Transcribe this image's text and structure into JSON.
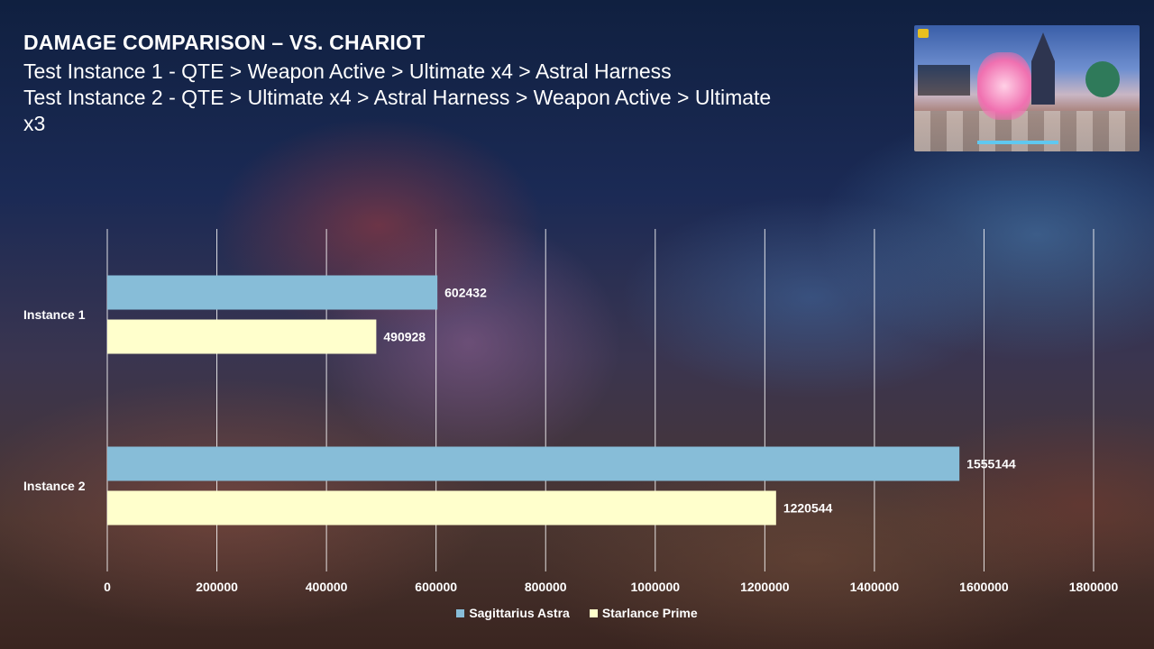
{
  "chart_data": {
    "type": "bar",
    "orientation": "horizontal",
    "title": "DAMAGE COMPARISON – VS. CHARIOT",
    "subtitle_lines": [
      "Test Instance 1 - QTE > Weapon Active > Ultimate x4 > Astral Harness",
      "Test Instance 2 - QTE > Ultimate x4 > Astral Harness > Weapon Active > Ultimate",
      "x3"
    ],
    "categories": [
      "Instance 1",
      "Instance 2"
    ],
    "series": [
      {
        "name": "Sagittarius Astra",
        "values": [
          602432,
          1555144
        ],
        "color": "#87bdd8"
      },
      {
        "name": "Starlance Prime",
        "values": [
          490928,
          1220544
        ],
        "color": "#ffffcc"
      }
    ],
    "xlim": [
      0,
      1800000
    ],
    "xticks": [
      0,
      200000,
      400000,
      600000,
      800000,
      1000000,
      1200000,
      1400000,
      1600000,
      1800000
    ],
    "xlabel": "",
    "ylabel": "",
    "grid": true,
    "legend_position": "bottom",
    "data_labels": true
  },
  "thumbnail": {
    "description_icon": "game-screenshot-thumbnail"
  }
}
